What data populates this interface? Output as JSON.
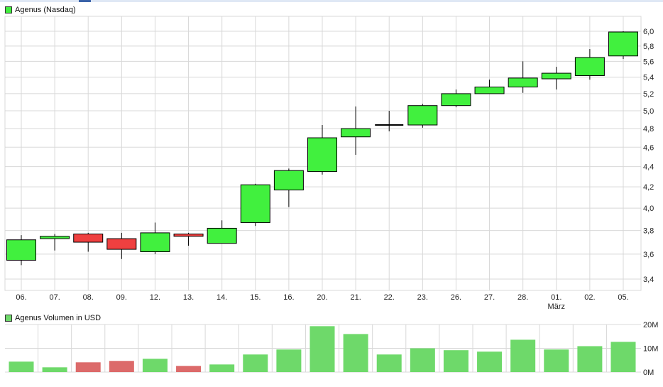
{
  "colors": {
    "up": "#41f03e",
    "down": "#ef4040",
    "vol_up": "#6ed96a",
    "vol_down": "#dc6a6a",
    "grid": "#d8d8d8"
  },
  "chart_data": [
    {
      "type": "candlestick",
      "legend": "Agenus (Nasdaq)",
      "legend_placement": "top-left",
      "y_scale": "log",
      "ylim": [
        3.3,
        6.1
      ],
      "y_ticks": [
        "3,4",
        "3,6",
        "3,8",
        "4,0",
        "4,2",
        "4,4",
        "4,6",
        "4,8",
        "5,0",
        "5,2",
        "5,4",
        "5,6",
        "5,8",
        "6,0"
      ],
      "y_tick_values": [
        3.4,
        3.6,
        3.8,
        4.0,
        4.2,
        4.4,
        4.6,
        4.8,
        5.0,
        5.2,
        5.4,
        5.6,
        5.8,
        6.0
      ],
      "grid": true,
      "categories": [
        "06.",
        "07.",
        "08.",
        "09.",
        "12.",
        "13.",
        "14.",
        "15.",
        "16.",
        "20.",
        "21.",
        "22.",
        "23.",
        "26.",
        "27.",
        "28.",
        "01.",
        "02.",
        "05."
      ],
      "month_label": {
        "category": "01.",
        "text": "März"
      },
      "open": [
        3.55,
        3.73,
        3.77,
        3.73,
        3.62,
        3.77,
        3.69,
        3.87,
        4.17,
        4.35,
        4.71,
        4.84,
        4.84,
        5.06,
        5.2,
        5.28,
        5.38,
        5.42,
        5.67
      ],
      "high": [
        3.76,
        3.77,
        3.78,
        3.78,
        3.87,
        3.78,
        3.89,
        4.23,
        4.38,
        4.84,
        5.05,
        5.0,
        5.08,
        5.25,
        5.37,
        5.6,
        5.53,
        5.76,
        6.0
      ],
      "low": [
        3.51,
        3.63,
        3.62,
        3.56,
        3.6,
        3.67,
        3.69,
        3.84,
        4.01,
        4.32,
        4.52,
        4.77,
        4.81,
        5.04,
        5.2,
        5.21,
        5.25,
        5.37,
        5.63
      ],
      "close": [
        3.72,
        3.75,
        3.7,
        3.64,
        3.78,
        3.75,
        3.82,
        4.22,
        4.36,
        4.7,
        4.8,
        4.84,
        5.06,
        5.2,
        5.28,
        5.39,
        5.45,
        5.65,
        5.99
      ]
    },
    {
      "type": "bar",
      "legend": "Agenus Volumen in USD",
      "legend_placement": "top-left",
      "ylim": [
        0,
        20
      ],
      "y_ticks": [
        "0M",
        "10M",
        "20M"
      ],
      "y_tick_values": [
        0,
        10,
        20
      ],
      "grid": true,
      "categories": [
        "06.",
        "07.",
        "08.",
        "09.",
        "12.",
        "13.",
        "14.",
        "15.",
        "16.",
        "20.",
        "21.",
        "22.",
        "23.",
        "26.",
        "27.",
        "28.",
        "01.",
        "02.",
        "05."
      ],
      "values": [
        4.4,
        2.0,
        4.1,
        4.7,
        5.6,
        2.6,
        3.2,
        7.4,
        9.5,
        19.3,
        16.0,
        7.4,
        10.0,
        9.2,
        8.6,
        13.6,
        9.5,
        10.9,
        12.7
      ],
      "direction": [
        "up",
        "up",
        "down",
        "down",
        "up",
        "down",
        "up",
        "up",
        "up",
        "up",
        "up",
        "up",
        "up",
        "up",
        "up",
        "up",
        "up",
        "up",
        "up"
      ]
    }
  ]
}
